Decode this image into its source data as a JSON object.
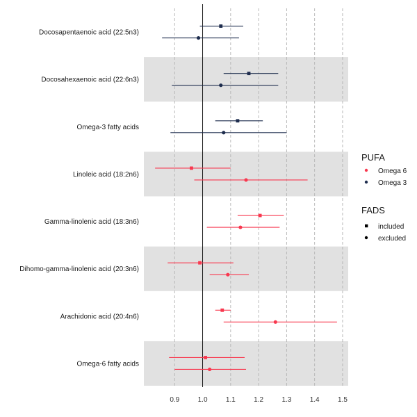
{
  "chart_data": {
    "type": "forest",
    "xlim": [
      0.79,
      1.52
    ],
    "xticks": [
      0.9,
      1.0,
      1.1,
      1.2,
      1.3,
      1.4,
      1.5
    ],
    "xtick_labels": [
      "0.9",
      "1.0",
      "1.1",
      "1.2",
      "1.3",
      "1.4",
      "1.5"
    ],
    "reference_line": 1.0,
    "grid": "vertical dashed",
    "alternating_row_shading": true,
    "categories": [
      "Docosapentaenoic acid (22:5n3)",
      "Docosahexaenoic acid (22:6n3)",
      "Omega-3 fatty acids",
      "Linoleic acid (18:2n6)",
      "Gamma-linolenic acid (18:3n6)",
      "Dihomo-gamma-linolenic acid (20:3n6)",
      "Arachidonic acid (20:4n6)",
      "Omega-6 fatty acids"
    ],
    "estimates": [
      {
        "category": "Docosapentaenoic acid (22:5n3)",
        "fads": "included",
        "pufa": "Omega 3",
        "est": 1.065,
        "lo": 0.99,
        "hi": 1.145
      },
      {
        "category": "Docosapentaenoic acid (22:5n3)",
        "fads": "excluded",
        "pufa": "Omega 3",
        "est": 0.985,
        "lo": 0.855,
        "hi": 1.13
      },
      {
        "category": "Docosahexaenoic acid (22:6n3)",
        "fads": "included",
        "pufa": "Omega 3",
        "est": 1.165,
        "lo": 1.075,
        "hi": 1.27
      },
      {
        "category": "Docosahexaenoic acid (22:6n3)",
        "fads": "excluded",
        "pufa": "Omega 3",
        "est": 1.065,
        "lo": 0.89,
        "hi": 1.27
      },
      {
        "category": "Omega-3 fatty acids",
        "fads": "included",
        "pufa": "Omega 3",
        "est": 1.125,
        "lo": 1.045,
        "hi": 1.215
      },
      {
        "category": "Omega-3 fatty acids",
        "fads": "excluded",
        "pufa": "Omega 3",
        "est": 1.075,
        "lo": 0.885,
        "hi": 1.3
      },
      {
        "category": "Linoleic acid (18:2n6)",
        "fads": "included",
        "pufa": "Omega 6",
        "est": 0.96,
        "lo": 0.83,
        "hi": 1.1
      },
      {
        "category": "Linoleic acid (18:2n6)",
        "fads": "excluded",
        "pufa": "Omega 6",
        "est": 1.155,
        "lo": 0.97,
        "hi": 1.375
      },
      {
        "category": "Gamma-linolenic acid (18:3n6)",
        "fads": "included",
        "pufa": "Omega 6",
        "est": 1.205,
        "lo": 1.125,
        "hi": 1.29
      },
      {
        "category": "Gamma-linolenic acid (18:3n6)",
        "fads": "excluded",
        "pufa": "Omega 6",
        "est": 1.135,
        "lo": 1.015,
        "hi": 1.275
      },
      {
        "category": "Dihomo-gamma-linolenic acid (20:3n6)",
        "fads": "included",
        "pufa": "Omega 6",
        "est": 0.99,
        "lo": 0.875,
        "hi": 1.11
      },
      {
        "category": "Dihomo-gamma-linolenic acid (20:3n6)",
        "fads": "excluded",
        "pufa": "Omega 6",
        "est": 1.09,
        "lo": 1.025,
        "hi": 1.165
      },
      {
        "category": "Arachidonic acid (20:4n6)",
        "fads": "included",
        "pufa": "Omega 6",
        "est": 1.07,
        "lo": 1.045,
        "hi": 1.1
      },
      {
        "category": "Arachidonic acid (20:4n6)",
        "fads": "excluded",
        "pufa": "Omega 6",
        "est": 1.26,
        "lo": 1.075,
        "hi": 1.48
      },
      {
        "category": "Omega-6 fatty acids",
        "fads": "included",
        "pufa": "Omega 6",
        "est": 1.01,
        "lo": 0.88,
        "hi": 1.15
      },
      {
        "category": "Omega-6 fatty acids",
        "fads": "excluded",
        "pufa": "Omega 6",
        "est": 1.025,
        "lo": 0.9,
        "hi": 1.155
      }
    ],
    "legend": {
      "placement": "right",
      "pufa": {
        "title": "PUFA",
        "items": [
          {
            "label": "Omega 6",
            "color": "#f8384f"
          },
          {
            "label": "Omega 3",
            "color": "#1e2d4e"
          }
        ]
      },
      "fads": {
        "title": "FADS",
        "items": [
          {
            "label": "included",
            "shape": "square"
          },
          {
            "label": "excluded",
            "shape": "circle"
          }
        ]
      }
    },
    "colors": {
      "Omega 6": "#f8384f",
      "Omega 3": "#1e2d4e",
      "band": "#e1e1e1",
      "grid": "#b3b3b3",
      "reference": "#000000"
    }
  }
}
